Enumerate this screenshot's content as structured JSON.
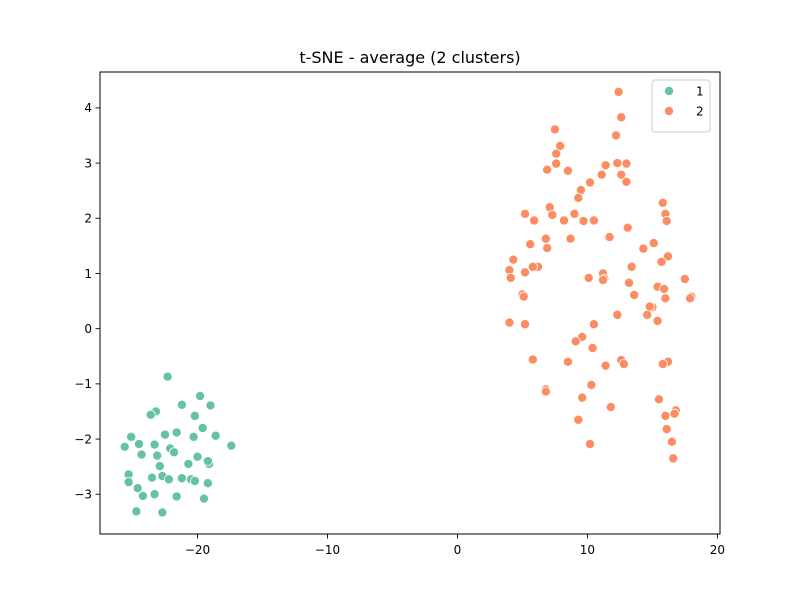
{
  "chart_data": {
    "type": "scatter",
    "title": "t-SNE - average (2 clusters)",
    "xlabel": "",
    "ylabel": "",
    "xlim": [
      -27.5,
      20.2
    ],
    "ylim": [
      -3.72,
      4.65
    ],
    "xticks": [
      -20,
      -10,
      0,
      10,
      20
    ],
    "xtick_labels": [
      "−20",
      "−10",
      "0",
      "10",
      "20"
    ],
    "yticks": [
      -3,
      -2,
      -1,
      0,
      1,
      2,
      3,
      4
    ],
    "ytick_labels": [
      "−3",
      "−2",
      "−1",
      "0",
      "1",
      "2",
      "3",
      "4"
    ],
    "grid": false,
    "legend_position": "top-right",
    "series": [
      {
        "name": "1",
        "color": "#66c2a5",
        "x": [
          -22.3,
          -19.8,
          -23.2,
          -23.6,
          -21.2,
          -20.2,
          -19.0,
          -22.5,
          -21.6,
          -20.3,
          -19.6,
          -18.6,
          -17.4,
          -25.6,
          -25.1,
          -24.5,
          -23.3,
          -22.1,
          -21.8,
          -20.7,
          -20.0,
          -19.1,
          -19.2,
          -24.3,
          -23.1,
          -22.9,
          -25.3,
          -23.5,
          -22.7,
          -22.2,
          -21.2,
          -20.5,
          -20.2,
          -19.2,
          -25.3,
          -24.6,
          -24.2,
          -23.3,
          -21.6,
          -19.5,
          -24.7,
          -22.7
        ],
        "y": [
          -0.87,
          -1.22,
          -1.5,
          -1.56,
          -1.38,
          -1.58,
          -1.39,
          -1.92,
          -1.88,
          -1.96,
          -1.8,
          -1.94,
          -2.12,
          -2.14,
          -1.96,
          -2.09,
          -2.1,
          -2.17,
          -2.24,
          -2.45,
          -2.32,
          -2.45,
          -2.4,
          -2.28,
          -2.3,
          -2.49,
          -2.64,
          -2.7,
          -2.67,
          -2.73,
          -2.71,
          -2.73,
          -2.76,
          -2.8,
          -2.78,
          -2.89,
          -3.03,
          -3.0,
          -3.04,
          -3.08,
          -3.31,
          -3.33
        ]
      },
      {
        "name": "2",
        "color": "#fc8d62",
        "x": [
          12.4,
          12.6,
          7.5,
          7.9,
          12.2,
          7.6,
          12.3,
          13.0,
          11.4,
          6.9,
          8.5,
          12.6,
          13.0,
          7.6,
          11.1,
          10.2,
          9.5,
          9.3,
          7.1,
          15.8,
          7.3,
          5.2,
          9.0,
          10.5,
          8.2,
          5.9,
          16.0,
          16.1,
          9.7,
          13.1,
          6.8,
          11.7,
          8.7,
          6.9,
          14.3,
          15.1,
          5.6,
          16.2,
          4.3,
          6.2,
          13.4,
          15.7,
          5.8,
          4.0,
          5.2,
          11.2,
          10.1,
          11.3,
          4.1,
          11.2,
          17.5,
          15.4,
          13.2,
          15.9,
          5.0,
          5.1,
          16.0,
          13.6,
          18.0,
          17.9,
          15.0,
          14.8,
          14.6,
          12.3,
          15.4,
          10.5,
          4.0,
          5.2,
          9.6,
          9.1,
          10.4,
          5.8,
          12.6,
          8.5,
          16.2,
          12.8,
          15.8,
          11.4,
          6.8,
          6.8,
          10.3,
          9.6,
          16.8,
          15.5,
          16.7,
          11.8,
          16.0,
          9.3,
          16.1,
          10.2,
          16.5,
          16.6
        ],
        "y": [
          4.29,
          3.83,
          3.61,
          3.31,
          3.5,
          3.17,
          3.0,
          2.99,
          2.96,
          2.88,
          2.86,
          2.79,
          2.66,
          2.99,
          2.79,
          2.65,
          2.51,
          2.37,
          2.2,
          2.28,
          2.06,
          2.08,
          2.08,
          1.96,
          1.96,
          1.96,
          2.08,
          1.95,
          1.95,
          1.83,
          1.63,
          1.66,
          1.63,
          1.46,
          1.45,
          1.55,
          1.53,
          1.31,
          1.25,
          1.12,
          1.12,
          1.21,
          1.12,
          1.06,
          1.02,
          1.0,
          0.92,
          0.9,
          0.92,
          0.88,
          0.9,
          0.76,
          0.83,
          0.72,
          0.62,
          0.58,
          0.55,
          0.61,
          0.58,
          0.55,
          0.39,
          0.4,
          0.25,
          0.25,
          0.14,
          0.08,
          0.11,
          0.08,
          -0.15,
          -0.23,
          -0.35,
          -0.56,
          -0.57,
          -0.6,
          -0.6,
          -0.64,
          -0.64,
          -0.67,
          -1.1,
          -1.14,
          -1.02,
          -1.25,
          -1.48,
          -1.28,
          -1.54,
          -1.42,
          -1.58,
          -1.65,
          -1.82,
          -2.09,
          -2.05,
          -2.35
        ]
      }
    ]
  }
}
